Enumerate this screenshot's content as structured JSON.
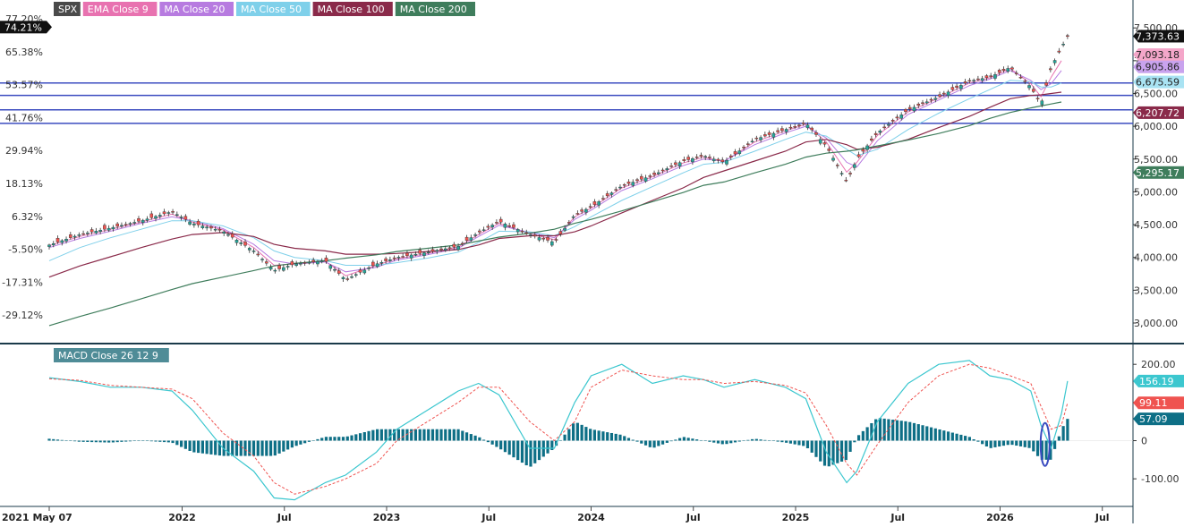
{
  "legend": [
    {
      "label": "SPX",
      "color": "#4a4a4a"
    },
    {
      "label": "EMA Close 9",
      "color": "#e872b0"
    },
    {
      "label": "MA Close 20",
      "color": "#b77be0"
    },
    {
      "label": "MA Close 50",
      "color": "#7fd0ea"
    },
    {
      "label": "MA Close 100",
      "color": "#8a2a4a"
    },
    {
      "label": "MA Close 200",
      "color": "#3f7d5c"
    }
  ],
  "macd_legend": {
    "label": "MACD Close 26 12 9",
    "color": "#4f8c97"
  },
  "left_pct_labels": [
    "77.20%",
    "65.38%",
    "53.57%",
    "41.76%",
    "29.94%",
    "18.13%",
    "6.32%",
    "-5.50%",
    "-17.31%",
    "-29.12%"
  ],
  "left_pct_values": [
    77.2,
    65.38,
    53.57,
    41.76,
    29.94,
    18.13,
    6.32,
    -5.5,
    -17.31,
    -29.12
  ],
  "left_badge": {
    "label": "74.21%",
    "value": 74.21
  },
  "price_axis": {
    "labels": [
      "7,500.00",
      "7,000.00",
      "6,500.00",
      "6,000.00",
      "5,500.00",
      "5,000.00",
      "4,500.00",
      "4,000.00",
      "3,500.00",
      "3,000.00"
    ],
    "values": [
      7500,
      7000,
      6500,
      6000,
      5500,
      5000,
      4500,
      4000,
      3500,
      3000
    ],
    "range": [
      2700,
      7680
    ]
  },
  "price_badges": [
    {
      "label": "7,373.63",
      "value": 7373.63,
      "color": "#111111"
    },
    {
      "label": "7,093.18",
      "value": 7093.18,
      "color": "#f4a6c9"
    },
    {
      "label": "6,905.86",
      "value": 6905.86,
      "color": "#c9a3ee"
    },
    {
      "label": "6,675.59",
      "value": 6675.59,
      "color": "#a9e3f3"
    },
    {
      "label": "6,207.72",
      "value": 6207.72,
      "color": "#8a2a4a"
    },
    {
      "label": "5,295.17",
      "value": 5295.17,
      "color": "#3f7d5c"
    }
  ],
  "horizontal_levels": [
    6660,
    6470,
    6250,
    6045
  ],
  "macd_axis": {
    "labels": [
      "200.00",
      "100.00",
      "0",
      "-100.00"
    ],
    "values": [
      200,
      100,
      0,
      -100
    ],
    "range": [
      -170,
      245
    ]
  },
  "macd_badges": [
    {
      "label": "156.19",
      "value": 156.19,
      "color": "#3cc7cf"
    },
    {
      "label": "99.11",
      "value": 99.11,
      "color": "#ef5350"
    },
    {
      "label": "57.09",
      "value": 57.09,
      "color": "#0e6f86"
    }
  ],
  "x_axis": {
    "labels": [
      "2021 May 07",
      "2022",
      "Jul",
      "2023",
      "Jul",
      "2024",
      "Jul",
      "2025",
      "Jul",
      "2026",
      "Jul"
    ],
    "dates": [
      2021.35,
      2022.0,
      2022.5,
      2023.0,
      2023.5,
      2024.0,
      2024.5,
      2025.0,
      2025.5,
      2026.0,
      2026.5
    ],
    "range": [
      2021.35,
      2026.65
    ]
  },
  "colors": {
    "up": "#26a69a",
    "down": "#ef5350",
    "level_line": "#3b4cc0",
    "divider": "#1a3a4a",
    "tick": "#4a4a4a"
  },
  "chart_data": [
    {
      "type": "line",
      "title": "SPX",
      "note_type": "candlestick",
      "x": [
        2021.35,
        2021.5,
        2021.65,
        2021.8,
        2021.95,
        2022.05,
        2022.2,
        2022.35,
        2022.45,
        2022.55,
        2022.7,
        2022.8,
        2022.95,
        2023.05,
        2023.2,
        2023.35,
        2023.45,
        2023.55,
        2023.7,
        2023.82,
        2023.92,
        2024.0,
        2024.15,
        2024.3,
        2024.45,
        2024.55,
        2024.65,
        2024.8,
        2024.95,
        2025.05,
        2025.15,
        2025.25,
        2025.3,
        2025.4,
        2025.55,
        2025.7,
        2025.85,
        2025.95,
        2026.05,
        2026.15,
        2026.2,
        2026.25,
        2026.3,
        2026.33
      ],
      "series": [
        {
          "name": "SPX",
          "values": [
            4190,
            4350,
            4450,
            4560,
            4700,
            4520,
            4400,
            4100,
            3800,
            3900,
            3950,
            3660,
            3900,
            4000,
            4080,
            4170,
            4380,
            4550,
            4350,
            4230,
            4650,
            4770,
            5090,
            5250,
            5470,
            5550,
            5450,
            5800,
            5950,
            6050,
            5700,
            5150,
            5500,
            5900,
            6250,
            6450,
            6690,
            6750,
            6900,
            6600,
            6330,
            6900,
            7200,
            7373.63
          ]
        },
        {
          "name": "EMA Close 9",
          "values": [
            4180,
            4320,
            4430,
            4540,
            4660,
            4540,
            4420,
            4150,
            3880,
            3900,
            3940,
            3720,
            3880,
            3980,
            4060,
            4160,
            4350,
            4520,
            4360,
            4270,
            4620,
            4750,
            5060,
            5230,
            5440,
            5530,
            5460,
            5760,
            5930,
            6030,
            5760,
            5300,
            5450,
            5860,
            6220,
            6430,
            6660,
            6740,
            6880,
            6650,
            6450,
            6750,
            7000,
            7093.18
          ]
        },
        {
          "name": "MA Close 20",
          "values": [
            4150,
            4290,
            4400,
            4520,
            4620,
            4560,
            4440,
            4200,
            3950,
            3900,
            3930,
            3780,
            3850,
            3960,
            4040,
            4140,
            4320,
            4490,
            4380,
            4300,
            4580,
            4720,
            5020,
            5200,
            5400,
            5500,
            5470,
            5720,
            5900,
            6000,
            5820,
            5450,
            5380,
            5780,
            6180,
            6400,
            6620,
            6720,
            6850,
            6700,
            6560,
            6650,
            6850,
            6905.86
          ]
        },
        {
          "name": "MA Close 50",
          "values": [
            3950,
            4150,
            4300,
            4430,
            4560,
            4560,
            4480,
            4300,
            4100,
            4000,
            3950,
            3880,
            3880,
            3920,
            3990,
            4080,
            4230,
            4400,
            4390,
            4330,
            4470,
            4620,
            4870,
            5080,
            5290,
            5420,
            5450,
            5620,
            5800,
            5910,
            5850,
            5650,
            5550,
            5650,
            5950,
            6200,
            6420,
            6560,
            6700,
            6680,
            6600,
            6600,
            6660,
            6675.59
          ]
        },
        {
          "name": "MA Close 100",
          "values": [
            3700,
            3870,
            4010,
            4150,
            4280,
            4350,
            4380,
            4320,
            4200,
            4140,
            4100,
            4050,
            4050,
            4060,
            4090,
            4120,
            4190,
            4290,
            4330,
            4330,
            4390,
            4480,
            4680,
            4870,
            5060,
            5220,
            5320,
            5470,
            5620,
            5760,
            5800,
            5720,
            5650,
            5680,
            5800,
            5980,
            6150,
            6290,
            6420,
            6470,
            6480,
            6500,
            6520,
            6207.72
          ]
        },
        {
          "name": "MA Close 200",
          "values": [
            2960,
            3100,
            3230,
            3370,
            3510,
            3600,
            3700,
            3800,
            3870,
            3910,
            3950,
            3990,
            4040,
            4090,
            4140,
            4190,
            4250,
            4310,
            4370,
            4430,
            4520,
            4580,
            4710,
            4850,
            4990,
            5100,
            5150,
            5290,
            5420,
            5530,
            5590,
            5620,
            5640,
            5700,
            5790,
            5890,
            6010,
            6120,
            6210,
            6280,
            6310,
            6340,
            6370,
            5295.17
          ]
        }
      ],
      "ylim": [
        2700,
        7680
      ]
    },
    {
      "type": "line",
      "title": "MACD Close 26 12 9",
      "x": [
        2021.35,
        2021.5,
        2021.65,
        2021.8,
        2021.95,
        2022.05,
        2022.2,
        2022.35,
        2022.45,
        2022.55,
        2022.7,
        2022.8,
        2022.95,
        2023.05,
        2023.2,
        2023.35,
        2023.45,
        2023.55,
        2023.7,
        2023.82,
        2023.92,
        2024.0,
        2024.15,
        2024.3,
        2024.45,
        2024.55,
        2024.65,
        2024.8,
        2024.95,
        2025.05,
        2025.15,
        2025.25,
        2025.3,
        2025.4,
        2025.55,
        2025.7,
        2025.85,
        2025.95,
        2026.05,
        2026.15,
        2026.2,
        2026.25,
        2026.3,
        2026.33
      ],
      "series": [
        {
          "name": "MACD",
          "values": [
            165,
            155,
            140,
            140,
            130,
            80,
            -20,
            -80,
            -150,
            -155,
            -110,
            -90,
            -30,
            30,
            80,
            130,
            150,
            120,
            -20,
            -20,
            100,
            170,
            200,
            150,
            170,
            160,
            140,
            160,
            140,
            110,
            -30,
            -110,
            -80,
            50,
            150,
            200,
            210,
            170,
            160,
            130,
            40,
            -20,
            70,
            156.19
          ]
        },
        {
          "name": "Signal",
          "values": [
            162,
            158,
            145,
            140,
            135,
            110,
            20,
            -40,
            -110,
            -140,
            -120,
            -100,
            -60,
            0,
            50,
            100,
            140,
            140,
            50,
            0,
            50,
            140,
            185,
            170,
            160,
            160,
            150,
            155,
            145,
            125,
            40,
            -60,
            -90,
            -10,
            100,
            170,
            200,
            190,
            170,
            150,
            90,
            30,
            40,
            99.11
          ]
        },
        {
          "name": "Histogram",
          "values": [
            5,
            -3,
            -5,
            0,
            -5,
            -30,
            -40,
            -40,
            -40,
            -15,
            10,
            10,
            30,
            30,
            30,
            30,
            10,
            -20,
            -70,
            -20,
            50,
            30,
            15,
            -20,
            10,
            0,
            -10,
            5,
            -5,
            -15,
            -70,
            -50,
            10,
            60,
            50,
            30,
            10,
            -20,
            -10,
            -20,
            -50,
            -50,
            30,
            57.09
          ]
        }
      ],
      "ylim": [
        -170,
        245
      ]
    }
  ]
}
